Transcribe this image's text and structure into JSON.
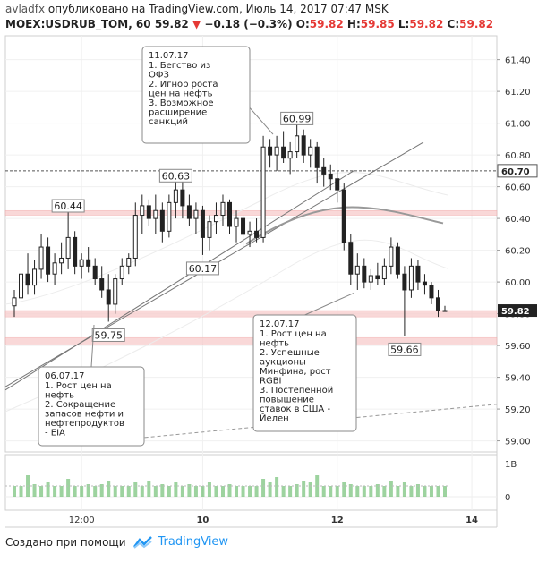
{
  "header": {
    "author": "avladfx",
    "published": "опубликовано на TradingView.com, Июль 14, 2017 07:47 MSK",
    "symbol": "MOEX:USDRUB_TOM, 60",
    "last": "59.82",
    "change": "−0.18 (−0.3%)",
    "o_label": "O:",
    "o_val": "59.82",
    "h_label": "H:",
    "h_val": "59.85",
    "l_label": "L:",
    "l_val": "59.82",
    "c_label": "C:",
    "c_val": "59.82"
  },
  "footer": {
    "created": "Создано при помощи",
    "brand": "TradingView"
  },
  "colors": {
    "bull": "#222222",
    "bear": "#222222",
    "zone": "#f7cccc",
    "trend": "#777777",
    "ma": "#999999",
    "volume": "#4caf50",
    "price_tag": "#222222"
  },
  "chart_data": {
    "type": "candlestick",
    "y_ticks": [
      "61.40",
      "61.20",
      "61.00",
      "60.80",
      "60.60",
      "60.40",
      "60.20",
      "60.00",
      "59.80",
      "59.60",
      "59.40",
      "59.20",
      "59.00"
    ],
    "ylim": [
      58.93,
      61.55
    ],
    "x_ticks": [
      {
        "label": "12:00",
        "bar": 10
      },
      {
        "label": "10",
        "bar": 28
      },
      {
        "label": "12",
        "bar": 48
      },
      {
        "label": "14",
        "bar": 68
      }
    ],
    "volume_ticks": [
      "1B",
      "0"
    ],
    "price_levels": [
      {
        "value": 60.7,
        "label": "60.70",
        "style": "dashed"
      },
      {
        "value": 59.82,
        "label": "59.82",
        "style": "current"
      }
    ],
    "zones": [
      [
        60.42,
        60.45
      ],
      [
        59.78,
        59.82
      ],
      [
        59.61,
        59.65
      ]
    ],
    "bars": [
      [
        59.85,
        59.95,
        59.78,
        59.9
      ],
      [
        59.9,
        60.12,
        59.85,
        60.05
      ],
      [
        60.05,
        60.18,
        59.92,
        59.98
      ],
      [
        59.98,
        60.14,
        59.92,
        60.08
      ],
      [
        60.08,
        60.3,
        60.02,
        60.22
      ],
      [
        60.22,
        60.28,
        60.0,
        60.05
      ],
      [
        60.05,
        60.18,
        59.98,
        60.12
      ],
      [
        60.12,
        60.25,
        60.05,
        60.15
      ],
      [
        60.15,
        60.44,
        60.08,
        60.28
      ],
      [
        60.28,
        60.32,
        60.05,
        60.1
      ],
      [
        60.1,
        60.18,
        60.02,
        60.14
      ],
      [
        60.14,
        60.22,
        60.06,
        60.1
      ],
      [
        60.1,
        60.15,
        59.98,
        60.02
      ],
      [
        60.02,
        60.1,
        59.9,
        59.95
      ],
      [
        59.95,
        60.05,
        59.75,
        59.86
      ],
      [
        59.86,
        60.05,
        59.8,
        60.02
      ],
      [
        60.02,
        60.15,
        59.98,
        60.1
      ],
      [
        60.1,
        60.18,
        60.05,
        60.15
      ],
      [
        60.15,
        60.5,
        60.1,
        60.42
      ],
      [
        60.42,
        60.55,
        60.3,
        60.48
      ],
      [
        60.48,
        60.52,
        60.35,
        60.4
      ],
      [
        60.4,
        60.55,
        60.3,
        60.45
      ],
      [
        60.45,
        60.5,
        60.25,
        60.32
      ],
      [
        60.32,
        60.55,
        60.28,
        60.5
      ],
      [
        60.5,
        60.63,
        60.4,
        60.58
      ],
      [
        60.58,
        60.63,
        60.4,
        60.48
      ],
      [
        60.48,
        60.55,
        60.35,
        60.4
      ],
      [
        60.4,
        60.5,
        60.3,
        60.45
      ],
      [
        60.45,
        60.48,
        60.17,
        60.28
      ],
      [
        60.28,
        60.42,
        60.2,
        60.38
      ],
      [
        60.38,
        60.5,
        60.3,
        60.42
      ],
      [
        60.42,
        60.55,
        60.35,
        60.5
      ],
      [
        60.5,
        60.52,
        60.3,
        60.35
      ],
      [
        60.35,
        60.45,
        60.25,
        60.4
      ],
      [
        60.4,
        60.42,
        60.22,
        60.3
      ],
      [
        60.3,
        60.38,
        60.22,
        60.32
      ],
      [
        60.32,
        60.4,
        60.25,
        60.28
      ],
      [
        60.28,
        60.92,
        60.25,
        60.85
      ],
      [
        60.85,
        60.9,
        60.72,
        60.8
      ],
      [
        60.8,
        60.92,
        60.7,
        60.85
      ],
      [
        60.85,
        60.95,
        60.75,
        60.78
      ],
      [
        60.78,
        60.88,
        60.68,
        60.82
      ],
      [
        60.82,
        60.99,
        60.78,
        60.92
      ],
      [
        60.92,
        60.96,
        60.75,
        60.8
      ],
      [
        60.8,
        60.9,
        60.72,
        60.85
      ],
      [
        60.85,
        60.88,
        60.62,
        60.72
      ],
      [
        60.72,
        60.78,
        60.6,
        60.68
      ],
      [
        60.68,
        60.74,
        60.58,
        60.65
      ],
      [
        60.65,
        60.7,
        60.5,
        60.58
      ],
      [
        60.58,
        60.62,
        60.2,
        60.25
      ],
      [
        60.25,
        60.3,
        59.98,
        60.05
      ],
      [
        60.05,
        60.18,
        59.95,
        60.1
      ],
      [
        60.1,
        60.15,
        59.96,
        60.0
      ],
      [
        60.0,
        60.08,
        59.95,
        60.04
      ],
      [
        60.04,
        60.12,
        59.98,
        60.02
      ],
      [
        60.02,
        60.15,
        59.98,
        60.1
      ],
      [
        60.1,
        60.28,
        60.05,
        60.22
      ],
      [
        60.22,
        60.25,
        60.02,
        60.05
      ],
      [
        60.05,
        60.1,
        59.66,
        59.95
      ],
      [
        59.95,
        60.15,
        59.9,
        60.1
      ],
      [
        60.1,
        60.14,
        59.95,
        60.0
      ],
      [
        60.0,
        60.05,
        59.92,
        59.98
      ],
      [
        59.98,
        60.0,
        59.86,
        59.9
      ],
      [
        59.9,
        59.95,
        59.78,
        59.82
      ],
      [
        59.82,
        59.85,
        59.82,
        59.82
      ]
    ],
    "volumes": [
      0.3,
      0.3,
      0.6,
      0.35,
      0.3,
      0.4,
      0.3,
      0.3,
      0.5,
      0.3,
      0.3,
      0.35,
      0.3,
      0.35,
      0.45,
      0.3,
      0.3,
      0.3,
      0.4,
      0.3,
      0.45,
      0.3,
      0.35,
      0.3,
      0.4,
      0.3,
      0.35,
      0.3,
      0.3,
      0.4,
      0.3,
      0.3,
      0.35,
      0.3,
      0.3,
      0.3,
      0.3,
      0.5,
      0.4,
      0.55,
      0.3,
      0.3,
      0.35,
      0.45,
      0.4,
      0.6,
      0.3,
      0.3,
      0.3,
      0.4,
      0.35,
      0.3,
      0.3,
      0.3,
      0.35,
      0.3,
      0.45,
      0.3,
      0.4,
      0.3,
      0.35,
      0.3,
      0.3,
      0.3,
      0.3
    ],
    "annotations": [
      {
        "id": "a1",
        "date": "06.07.17",
        "lines": [
          "1. Рост цен на",
          "нефть",
          "2. Сокращение",
          "запасов нефти и",
          "нефтепродуктов",
          "- EIA"
        ]
      },
      {
        "id": "a2",
        "date": "11.07.17",
        "lines": [
          "1. Бегство из",
          "ОФЗ",
          "2. Игнор роста",
          "цен на нефть",
          "3. Возможное",
          "расширение",
          "санкций"
        ]
      },
      {
        "id": "a3",
        "date": "12.07.17",
        "lines": [
          "1. Рост цен на",
          "нефть",
          "2. Успешные",
          "аукционы",
          "Минфина, рост",
          "RGBI",
          "3. Постепенной",
          "повышение",
          "ставок в США -",
          "Йелен"
        ]
      }
    ],
    "price_labels": [
      {
        "text": "60.44",
        "bar": 8,
        "value": 60.44
      },
      {
        "text": "59.75",
        "bar": 14,
        "value": 59.75
      },
      {
        "text": "60.63",
        "bar": 24,
        "value": 60.63
      },
      {
        "text": "60.17",
        "bar": 28,
        "value": 60.17
      },
      {
        "text": "60.99",
        "bar": 42,
        "value": 60.99
      },
      {
        "text": "59.66",
        "bar": 58,
        "value": 59.66
      }
    ]
  }
}
